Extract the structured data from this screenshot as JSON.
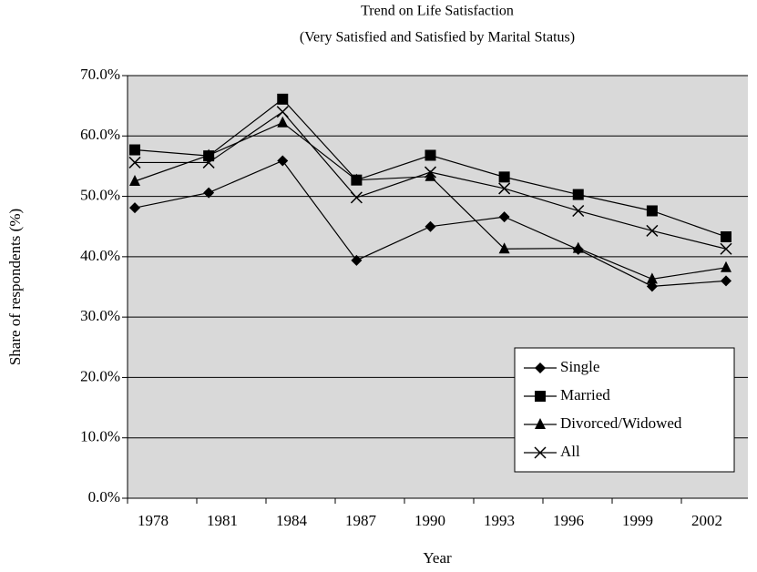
{
  "chart_data": {
    "type": "line",
    "title": "Trend on Life Satisfaction",
    "subtitle": "(Very Satisfied and Satisfied by Marital Status)",
    "x_label": "Year",
    "y_label": "Share of respondents (%)",
    "categories": [
      "1978",
      "1981",
      "1984",
      "1987",
      "1990",
      "1993",
      "1996",
      "1999",
      "2002"
    ],
    "series": [
      {
        "name": "Single",
        "color": "#000000",
        "marker": "diamond",
        "values": [
          48.1,
          50.6,
          55.9,
          39.4,
          45.0,
          46.6,
          41.2,
          35.1,
          36.0
        ]
      },
      {
        "name": "Married",
        "color": "#000000",
        "marker": "square",
        "values": [
          57.7,
          56.7,
          66.1,
          52.7,
          56.8,
          53.2,
          50.3,
          47.6,
          43.3
        ]
      },
      {
        "name": "Divorced/Widowed",
        "color": "#000000",
        "marker": "triangle",
        "values": [
          52.5,
          56.8,
          62.2,
          52.7,
          53.3,
          41.3,
          41.4,
          36.3,
          38.2
        ]
      },
      {
        "name": "All",
        "color": "#000000",
        "marker": "x",
        "values": [
          55.6,
          55.6,
          64.0,
          49.8,
          54.0,
          51.3,
          47.6,
          44.3,
          41.3
        ]
      }
    ],
    "ylim": [
      0,
      70
    ],
    "yticks": [
      {
        "value": 0,
        "label": "0.0%"
      },
      {
        "value": 10,
        "label": "10.0%"
      },
      {
        "value": 20,
        "label": "20.0%"
      },
      {
        "value": 30,
        "label": "30.0%"
      },
      {
        "value": 40,
        "label": "40.0%"
      },
      {
        "value": 50,
        "label": "50.0%"
      },
      {
        "value": 60,
        "label": "60.0%"
      },
      {
        "value": 70,
        "label": "70.0%"
      }
    ],
    "grid": true,
    "legend": "lower right",
    "plot_background": "#d9d9d9"
  }
}
